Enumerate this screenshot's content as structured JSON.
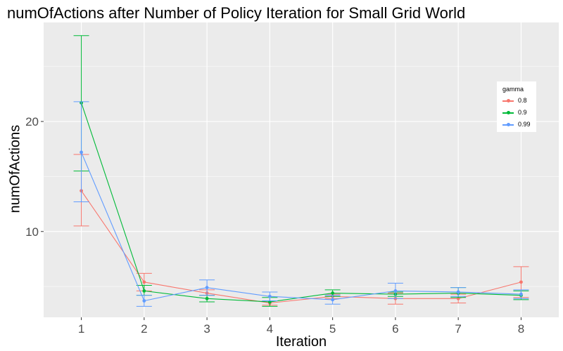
{
  "chart_data": {
    "type": "line",
    "title": "numOfActions after Number of Policy Iteration for Small Grid World",
    "xlabel": "Iteration",
    "ylabel": "numOfActions",
    "x": [
      1,
      2,
      3,
      4,
      5,
      6,
      7,
      8
    ],
    "x_ticks": [
      "1",
      "2",
      "3",
      "4",
      "5",
      "6",
      "7",
      "8"
    ],
    "y_ticks": [
      "10",
      "20"
    ],
    "xlim": [
      0.4,
      8.6
    ],
    "ylim": [
      2.2,
      29
    ],
    "grid": true,
    "error_bars": true,
    "legend": {
      "title": "gamma",
      "position": "right"
    },
    "series": [
      {
        "name": "0.8",
        "color": "#F8766D",
        "values": [
          13.7,
          5.4,
          4.4,
          3.5,
          4.1,
          3.9,
          3.9,
          5.4
        ],
        "lower": [
          10.5,
          4.6,
          4.2,
          3.3,
          3.9,
          3.4,
          3.5,
          4.0
        ],
        "upper": [
          17.0,
          6.2,
          4.7,
          3.7,
          4.3,
          4.4,
          4.3,
          6.8
        ]
      },
      {
        "name": "0.9",
        "color": "#00BA38",
        "values": [
          21.7,
          4.6,
          3.9,
          3.6,
          4.4,
          4.3,
          4.4,
          4.2
        ],
        "lower": [
          15.5,
          4.2,
          3.6,
          3.2,
          4.1,
          4.1,
          4.0,
          3.8
        ],
        "upper": [
          27.8,
          5.1,
          4.2,
          4.0,
          4.7,
          4.5,
          4.9,
          4.6
        ]
      },
      {
        "name": "0.99",
        "color": "#619CFF",
        "values": [
          17.2,
          3.7,
          4.9,
          4.1,
          3.8,
          4.6,
          4.5,
          4.3
        ],
        "lower": [
          12.7,
          3.2,
          4.2,
          3.7,
          3.4,
          3.9,
          4.1,
          3.9
        ],
        "upper": [
          21.8,
          4.2,
          5.6,
          4.5,
          4.2,
          5.3,
          4.9,
          4.7
        ]
      }
    ]
  }
}
